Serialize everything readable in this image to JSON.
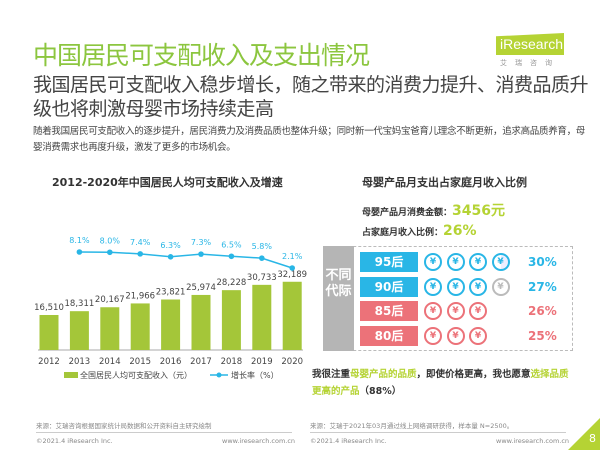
{
  "header": {
    "title": "中国居民可支配收入及支出情况",
    "logo": "iResearch",
    "logo_sub": "艾瑞咨询",
    "subtitle": "我国居民可支配收入稳步增长，随之带来的消费力提升、消费品质升级也将刺激母婴市场持续走高",
    "description": "随着我国居民可支配收入的逐步提升，居民消费力及消费品质也整体升级；同时新一代宝妈宝爸育儿理念不断更新，追求高品质养育，母婴消费需求也再度升级，激发了更多的市场机会。"
  },
  "chart_data": {
    "type": "bar+line",
    "title": "2012-2020年中国居民人均可支配收入及增速",
    "categories": [
      "2012",
      "2013",
      "2014",
      "2015",
      "2016",
      "2017",
      "2018",
      "2019",
      "2020"
    ],
    "series": [
      {
        "name": "全国居民人均可支配收入（元）",
        "type": "bar",
        "color": "#a4c639",
        "values": [
          16510,
          18311,
          20167,
          21966,
          23821,
          25974,
          28228,
          30733,
          32189
        ],
        "labels": [
          "16,510",
          "18,311",
          "20,167",
          "21,966",
          "23,821",
          "25,974",
          "28,228",
          "30,733",
          "32,189"
        ]
      },
      {
        "name": "增长率（%）",
        "type": "line",
        "color": "#29b6e6",
        "values": [
          null,
          8.1,
          8.0,
          7.4,
          6.3,
          7.3,
          6.5,
          5.8,
          2.1
        ],
        "labels": [
          "",
          "8.1%",
          "8.0%",
          "7.4%",
          "6.3%",
          "7.3%",
          "6.5%",
          "5.8%",
          "2.1%"
        ]
      }
    ],
    "legend": "bottom"
  },
  "right": {
    "title": "母婴产品月支出占家庭月收入比例",
    "spend_label": "母婴产品月消费金额：",
    "spend_value": "3456元",
    "ratio_label": "占家庭月收入比例：",
    "ratio_value": "26%",
    "group_label": "不同代际",
    "rows": [
      {
        "label": "95后",
        "pct": "30%",
        "value": 30,
        "color": "#29b6e6",
        "coins": [
          1,
          1,
          1,
          0.5
        ]
      },
      {
        "label": "90后",
        "pct": "27%",
        "value": 27,
        "color": "#29b6e6",
        "coins": [
          1,
          1,
          1,
          0.2
        ]
      },
      {
        "label": "85后",
        "pct": "26%",
        "value": 26,
        "color": "#ec7279",
        "coins": [
          1,
          1,
          1
        ]
      },
      {
        "label": "80后",
        "pct": "25%",
        "value": 25,
        "color": "#ec7279",
        "coins": [
          1,
          1,
          1
        ]
      }
    ],
    "coin_glyph": "¥",
    "note_a": "我很注重",
    "note_b": "母婴产品的品质",
    "note_c": "，即使价格更高，我也愿意",
    "note_d": "选择品质更高的产品",
    "note_e": "（88%）"
  },
  "footer": {
    "source_left": "来源：艾瑞咨询根据国家统计局数据和公开资料自主研究绘制",
    "source_right": "来源：艾瑞于2021年03月通过线上网络调研获得，样本量 N=2500。",
    "copyright": "©2021.4 iResearch Inc.",
    "url": "www.iresearch.com.cn",
    "page": "8"
  }
}
